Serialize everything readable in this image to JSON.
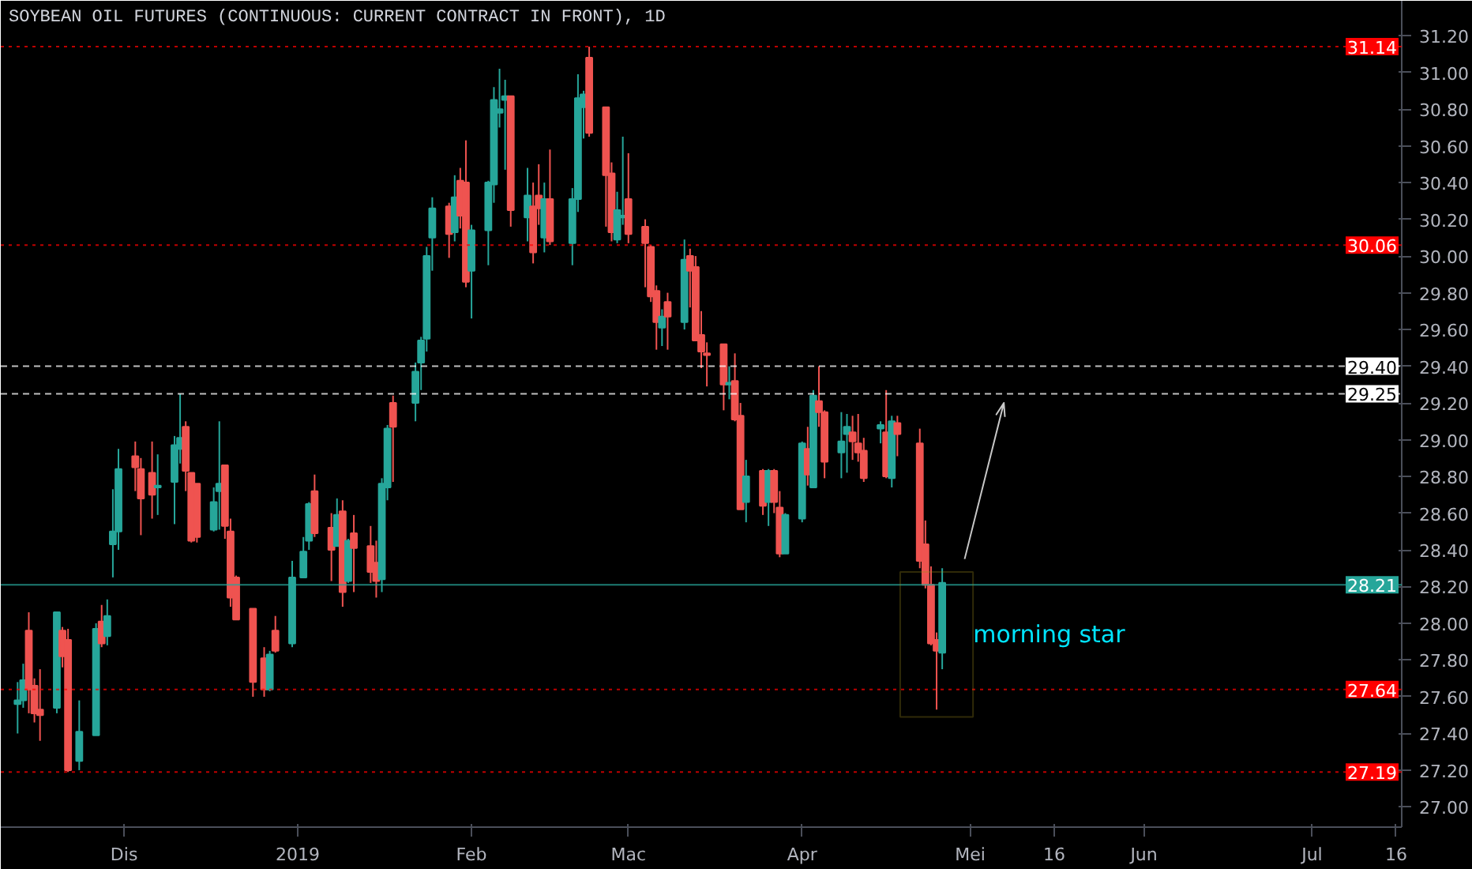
{
  "chart_data": {
    "type": "candlestick",
    "title": "SOYBEAN OIL FUTURES (CONTINUOUS: CURRENT CONTRACT IN FRONT), 1D",
    "x": [
      "2018-11-12",
      "2018-11-13",
      "2018-11-14",
      "2018-11-15",
      "2018-11-16",
      "2018-11-19",
      "2018-11-20",
      "2018-11-21",
      "2018-11-23",
      "2018-11-26",
      "2018-11-27",
      "2018-11-28",
      "2018-11-29",
      "2018-11-30",
      "2018-12-03",
      "2018-12-04",
      "2018-12-06",
      "2018-12-07",
      "2018-12-10",
      "2018-12-11",
      "2018-12-12",
      "2018-12-13",
      "2018-12-14",
      "2018-12-17",
      "2018-12-18",
      "2018-12-19",
      "2018-12-20",
      "2018-12-21",
      "2018-12-24",
      "2018-12-26",
      "2018-12-27",
      "2018-12-28",
      "2018-12-31",
      "2019-01-02",
      "2019-01-03",
      "2019-01-04",
      "2019-01-07",
      "2019-01-08",
      "2019-01-09",
      "2019-01-10",
      "2019-01-11",
      "2019-01-14",
      "2019-01-15",
      "2019-01-16",
      "2019-01-17",
      "2019-01-18",
      "2019-01-22",
      "2019-01-23",
      "2019-01-24",
      "2019-01-25",
      "2019-01-28",
      "2019-01-29",
      "2019-01-30",
      "2019-01-31",
      "2019-02-01",
      "2019-02-04",
      "2019-02-05",
      "2019-02-06",
      "2019-02-07",
      "2019-02-08",
      "2019-02-11",
      "2019-02-12",
      "2019-02-13",
      "2019-02-14",
      "2019-02-15",
      "2019-02-19",
      "2019-02-20",
      "2019-02-21",
      "2019-02-22",
      "2019-02-25",
      "2019-02-26",
      "2019-02-27",
      "2019-02-28",
      "2019-03-01",
      "2019-03-04",
      "2019-03-05",
      "2019-03-06",
      "2019-03-07",
      "2019-03-08",
      "2019-03-11",
      "2019-03-12",
      "2019-03-13",
      "2019-03-14",
      "2019-03-15",
      "2019-03-18",
      "2019-03-19",
      "2019-03-20",
      "2019-03-21",
      "2019-03-22",
      "2019-03-25",
      "2019-03-26",
      "2019-03-27",
      "2019-03-28",
      "2019-03-29",
      "2019-04-01",
      "2019-04-02",
      "2019-04-03",
      "2019-04-04",
      "2019-04-05",
      "2019-04-08",
      "2019-04-09",
      "2019-04-10",
      "2019-04-11",
      "2019-04-12",
      "2019-04-15",
      "2019-04-16",
      "2019-04-17",
      "2019-04-18",
      "2019-04-22",
      "2019-04-23",
      "2019-04-24",
      "2019-04-25",
      "2019-04-26"
    ],
    "ohlc": [
      [
        27.56,
        27.68,
        27.4,
        27.58
      ],
      [
        27.58,
        27.78,
        27.54,
        27.69
      ],
      [
        27.96,
        28.06,
        27.51,
        27.64
      ],
      [
        27.66,
        27.7,
        27.46,
        27.51
      ],
      [
        27.53,
        27.75,
        27.36,
        27.5
      ],
      [
        27.54,
        28.06,
        27.51,
        28.06
      ],
      [
        27.96,
        27.98,
        27.76,
        27.82
      ],
      [
        27.91,
        27.97,
        27.19,
        27.2
      ],
      [
        27.25,
        27.58,
        27.2,
        27.41
      ],
      [
        27.39,
        28.0,
        27.39,
        27.97
      ],
      [
        28.01,
        28.1,
        27.87,
        27.89
      ],
      [
        27.93,
        28.13,
        27.88,
        28.04
      ],
      [
        28.43,
        28.73,
        28.25,
        28.5
      ],
      [
        28.5,
        28.95,
        28.4,
        28.84
      ],
      [
        28.91,
        28.99,
        28.72,
        28.85
      ],
      [
        28.84,
        28.9,
        28.48,
        28.68
      ],
      [
        28.82,
        28.99,
        28.57,
        28.7
      ],
      [
        28.74,
        28.92,
        28.59,
        28.75
      ],
      [
        28.77,
        29.02,
        28.54,
        28.97
      ],
      [
        28.95,
        29.25,
        28.87,
        29.01
      ],
      [
        29.07,
        29.1,
        28.72,
        28.83
      ],
      [
        28.82,
        28.82,
        28.44,
        28.45
      ],
      [
        28.76,
        28.76,
        28.44,
        28.47
      ],
      [
        28.51,
        28.74,
        28.5,
        28.66
      ],
      [
        28.72,
        29.1,
        28.51,
        28.76
      ],
      [
        28.86,
        28.86,
        28.46,
        28.53
      ],
      [
        28.5,
        28.57,
        28.09,
        28.14
      ],
      [
        28.25,
        28.26,
        28.02,
        28.02
      ],
      [
        28.08,
        28.08,
        27.6,
        27.68
      ],
      [
        27.81,
        27.87,
        27.6,
        27.64
      ],
      [
        27.64,
        27.85,
        27.63,
        27.83
      ],
      [
        27.96,
        28.04,
        27.84,
        27.85
      ],
      [
        27.89,
        28.34,
        27.87,
        28.25
      ],
      [
        28.25,
        28.47,
        28.25,
        28.39
      ],
      [
        28.45,
        28.66,
        28.4,
        28.65
      ],
      [
        28.72,
        28.81,
        28.47,
        28.49
      ],
      [
        28.52,
        28.6,
        28.23,
        28.4
      ],
      [
        28.42,
        28.68,
        28.42,
        28.59
      ],
      [
        28.61,
        28.67,
        28.09,
        28.17
      ],
      [
        28.23,
        28.46,
        28.22,
        28.45
      ],
      [
        28.49,
        28.59,
        28.17,
        28.41
      ],
      [
        28.42,
        28.53,
        28.22,
        28.28
      ],
      [
        28.33,
        28.45,
        28.14,
        28.23
      ],
      [
        28.24,
        28.79,
        28.17,
        28.76
      ],
      [
        28.74,
        29.08,
        28.67,
        29.06
      ],
      [
        29.2,
        29.24,
        28.77,
        29.07
      ],
      [
        29.2,
        29.42,
        29.1,
        29.37
      ],
      [
        29.42,
        29.56,
        29.27,
        29.54
      ],
      [
        29.55,
        30.05,
        29.48,
        30.0
      ],
      [
        30.1,
        30.32,
        29.92,
        30.26
      ],
      [
        30.27,
        30.29,
        29.99,
        30.12
      ],
      [
        30.13,
        30.44,
        30.08,
        30.32
      ],
      [
        30.41,
        30.48,
        30.15,
        30.22
      ],
      [
        30.4,
        30.63,
        29.83,
        29.86
      ],
      [
        29.92,
        30.17,
        29.66,
        30.14
      ],
      [
        30.14,
        30.41,
        29.95,
        30.4
      ],
      [
        30.39,
        30.92,
        30.29,
        30.85
      ],
      [
        30.78,
        31.02,
        30.7,
        30.8
      ],
      [
        30.85,
        30.96,
        30.47,
        30.87
      ],
      [
        30.87,
        30.87,
        30.16,
        30.25
      ],
      [
        30.21,
        30.48,
        30.08,
        30.33
      ],
      [
        30.27,
        30.4,
        29.96,
        30.02
      ],
      [
        30.33,
        30.5,
        30.17,
        30.26
      ],
      [
        30.1,
        30.4,
        30.02,
        30.31
      ],
      [
        30.31,
        30.58,
        30.06,
        30.08
      ],
      [
        30.07,
        30.37,
        29.95,
        30.31
      ],
      [
        30.31,
        30.99,
        30.24,
        30.86
      ],
      [
        30.81,
        30.9,
        30.64,
        30.88
      ],
      [
        31.08,
        31.14,
        30.65,
        30.67
      ],
      [
        30.81,
        30.81,
        30.16,
        30.44
      ],
      [
        30.45,
        30.51,
        30.08,
        30.13
      ],
      [
        30.09,
        30.35,
        30.07,
        30.25
      ],
      [
        30.21,
        30.65,
        30.17,
        30.22
      ],
      [
        30.31,
        30.56,
        30.07,
        30.12
      ],
      [
        30.16,
        30.2,
        29.83,
        30.07
      ],
      [
        30.05,
        30.06,
        29.75,
        29.78
      ],
      [
        29.81,
        29.84,
        29.49,
        29.64
      ],
      [
        29.61,
        29.71,
        29.51,
        29.67
      ],
      [
        29.75,
        29.8,
        29.49,
        29.67
      ],
      [
        29.64,
        30.09,
        29.6,
        29.98
      ],
      [
        30.0,
        30.04,
        29.72,
        29.92
      ],
      [
        29.94,
        30.0,
        29.54,
        29.54
      ],
      [
        29.57,
        29.7,
        29.39,
        29.48
      ],
      [
        29.47,
        29.53,
        29.29,
        29.46
      ],
      [
        29.52,
        29.52,
        29.16,
        29.3
      ],
      [
        29.3,
        29.4,
        29.22,
        29.31
      ],
      [
        29.32,
        29.47,
        29.1,
        29.11
      ],
      [
        29.13,
        29.2,
        28.62,
        28.62
      ],
      [
        28.66,
        28.89,
        28.55,
        28.8
      ],
      [
        28.83,
        28.84,
        28.59,
        28.64
      ],
      [
        28.66,
        28.84,
        28.53,
        28.83
      ],
      [
        28.83,
        28.84,
        28.6,
        28.66
      ],
      [
        28.63,
        28.72,
        28.36,
        28.38
      ],
      [
        28.38,
        28.6,
        28.38,
        28.59
      ],
      [
        28.57,
        28.99,
        28.55,
        28.98
      ],
      [
        28.95,
        29.07,
        28.75,
        28.81
      ],
      [
        28.74,
        29.27,
        28.74,
        29.24
      ],
      [
        29.21,
        29.4,
        29.07,
        29.15
      ],
      [
        29.15,
        29.16,
        28.79,
        28.88
      ],
      [
        28.93,
        29.15,
        28.79,
        28.99
      ],
      [
        29.03,
        29.14,
        28.82,
        29.07
      ],
      [
        29.04,
        29.13,
        28.89,
        28.99
      ],
      [
        28.98,
        29.14,
        28.88,
        28.93
      ],
      [
        28.94,
        29.01,
        28.77,
        28.79
      ],
      [
        29.06,
        29.1,
        28.98,
        29.08
      ],
      [
        29.04,
        29.27,
        28.79,
        28.8
      ],
      [
        28.79,
        29.13,
        28.74,
        29.1
      ],
      [
        29.09,
        29.13,
        28.91,
        29.03
      ],
      [
        28.98,
        29.06,
        28.3,
        28.34
      ],
      [
        28.43,
        28.56,
        28.19,
        28.21
      ],
      [
        28.21,
        28.31,
        27.88,
        27.89
      ],
      [
        27.91,
        27.95,
        27.53,
        27.85
      ],
      [
        27.84,
        28.3,
        27.75,
        28.22
      ]
    ],
    "colors": [
      "#26a69a",
      "#26a69a",
      "#ef5350",
      "#ef5350",
      "#ef5350",
      "#26a69a",
      "#ef5350",
      "#ef5350",
      "#26a69a",
      "#26a69a",
      "#ef5350",
      "#26a69a",
      "#26a69a",
      "#26a69a",
      "#ef5350",
      "#ef5350",
      "#ef5350",
      "#26a69a",
      "#26a69a",
      "#26a69a",
      "#ef5350",
      "#ef5350",
      "#ef5350",
      "#26a69a",
      "#26a69a",
      "#ef5350",
      "#ef5350",
      "#ef5350",
      "#ef5350",
      "#ef5350",
      "#26a69a",
      "#ef5350",
      "#26a69a",
      "#26a69a",
      "#26a69a",
      "#ef5350",
      "#ef5350",
      "#26a69a",
      "#ef5350",
      "#26a69a",
      "#ef5350",
      "#ef5350",
      "#ef5350",
      "#26a69a",
      "#26a69a",
      "#ef5350",
      "#26a69a",
      "#26a69a",
      "#26a69a",
      "#26a69a",
      "#ef5350",
      "#26a69a",
      "#ef5350",
      "#ef5350",
      "#26a69a",
      "#26a69a",
      "#26a69a",
      "#26a69a",
      "#26a69a",
      "#ef5350",
      "#26a69a",
      "#ef5350",
      "#ef5350",
      "#26a69a",
      "#ef5350",
      "#26a69a",
      "#26a69a",
      "#26a69a",
      "#ef5350",
      "#ef5350",
      "#ef5350",
      "#26a69a",
      "#26a69a",
      "#ef5350",
      "#ef5350",
      "#ef5350",
      "#ef5350",
      "#26a69a",
      "#ef5350",
      "#26a69a",
      "#ef5350",
      "#ef5350",
      "#ef5350",
      "#ef5350",
      "#ef5350",
      "#26a69a",
      "#ef5350",
      "#ef5350",
      "#26a69a",
      "#ef5350",
      "#26a69a",
      "#ef5350",
      "#ef5350",
      "#26a69a",
      "#26a69a",
      "#ef5350",
      "#26a69a",
      "#ef5350",
      "#ef5350",
      "#26a69a",
      "#26a69a",
      "#ef5350",
      "#ef5350",
      "#ef5350",
      "#26a69a",
      "#ef5350",
      "#26a69a",
      "#ef5350",
      "#ef5350",
      "#ef5350",
      "#ef5350",
      "#ef5350",
      "#26a69a"
    ],
    "xlim": [
      "2018-11-09",
      "2019-07-17"
    ],
    "ylim": [
      26.89,
      31.39
    ],
    "xticks": [
      {
        "value": "2018-12-01",
        "label": "Dis"
      },
      {
        "value": "2019-01-01",
        "label": "2019"
      },
      {
        "value": "2019-02-01",
        "label": "Feb"
      },
      {
        "value": "2019-03-01",
        "label": "Mac"
      },
      {
        "value": "2019-04-01",
        "label": "Apr"
      },
      {
        "value": "2019-05-01",
        "label": "Mei"
      },
      {
        "value": "2019-05-16",
        "label": "16"
      },
      {
        "value": "2019-06-01",
        "label": "Jun"
      },
      {
        "value": "2019-07-01",
        "label": "Jul"
      },
      {
        "value": "2019-07-16",
        "label": "16"
      }
    ],
    "yticks": [
      {
        "value": 27.0,
        "label": "27.00"
      },
      {
        "value": 27.2,
        "label": "27.20"
      },
      {
        "value": 27.4,
        "label": "27.40"
      },
      {
        "value": 27.6,
        "label": "27.60"
      },
      {
        "value": 27.8,
        "label": "27.80"
      },
      {
        "value": 28.0,
        "label": "28.00"
      },
      {
        "value": 28.2,
        "label": "28.20"
      },
      {
        "value": 28.4,
        "label": "28.40"
      },
      {
        "value": 28.6,
        "label": "28.60"
      },
      {
        "value": 28.8,
        "label": "28.80"
      },
      {
        "value": 29.0,
        "label": "29.00"
      },
      {
        "value": 29.2,
        "label": "29.20"
      },
      {
        "value": 29.4,
        "label": "29.40"
      },
      {
        "value": 29.6,
        "label": "29.60"
      },
      {
        "value": 29.8,
        "label": "29.80"
      },
      {
        "value": 30.0,
        "label": "30.00"
      },
      {
        "value": 30.2,
        "label": "30.20"
      },
      {
        "value": 30.4,
        "label": "30.40"
      },
      {
        "value": 30.6,
        "label": "30.60"
      },
      {
        "value": 30.8,
        "label": "30.80"
      },
      {
        "value": 31.0,
        "label": "31.00"
      },
      {
        "value": 31.2,
        "label": "31.20"
      }
    ],
    "ref_lines": [
      {
        "axis": "y",
        "value": 31.14,
        "label": "31.14",
        "color": "#ff0000",
        "line_style": "dotted"
      },
      {
        "axis": "y",
        "value": 30.06,
        "label": "30.06",
        "color": "#ff0000",
        "line_style": "dotted"
      },
      {
        "axis": "y",
        "value": 29.4,
        "label": "29.40",
        "color": "#ffffff",
        "line_style": "dashed"
      },
      {
        "axis": "y",
        "value": 29.25,
        "label": "29.25",
        "color": "#ffffff",
        "line_style": "dashed"
      },
      {
        "axis": "y",
        "value": 28.21,
        "label": "28.21",
        "color": "#26a69a",
        "line_style": "solid"
      },
      {
        "axis": "y",
        "value": 27.64,
        "label": "27.64",
        "color": "#ff0000",
        "line_style": "dotted"
      },
      {
        "axis": "y",
        "value": 27.19,
        "label": "27.19",
        "color": "#ff0000",
        "line_style": "dotted"
      }
    ],
    "annotations": [
      "morning star"
    ],
    "series": [
      {
        "type": "line",
        "x": [
          "2019-04-30",
          "2019-05-07"
        ],
        "values": [
          28.35,
          29.2
        ],
        "color": "#c8c8c8"
      }
    ]
  }
}
